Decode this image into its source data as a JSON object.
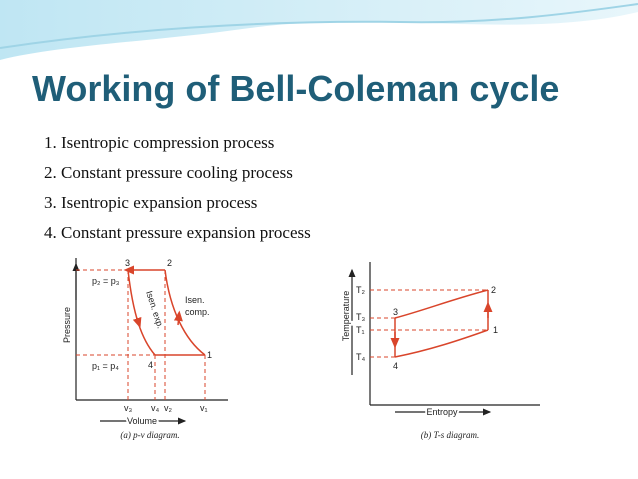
{
  "title": "Working of Bell-Coleman cycle",
  "steps": [
    "1. Isentropic compression process",
    "2. Constant pressure cooling process",
    "3. Isentropic expansion process",
    "4. Constant pressure expansion process"
  ],
  "pv_diagram": {
    "y_axis": "Pressure",
    "x_axis": "Volume",
    "caption": "(a) p-v diagram.",
    "points": [
      "1",
      "2",
      "3",
      "4"
    ],
    "pressure_labels": [
      "p₂ = p₃",
      "p₁ = p₄"
    ],
    "volume_labels": [
      "v₃",
      "v₄",
      "v₂",
      "v₁"
    ],
    "compression_label": [
      "Isen.",
      "comp."
    ],
    "expansion_label": "Isen. exp."
  },
  "ts_diagram": {
    "y_axis": "Temperature",
    "x_axis": "Entropy",
    "caption": "(b) T-s diagram.",
    "points": [
      "1",
      "2",
      "3",
      "4"
    ],
    "temperature_labels": [
      "T₂",
      "T₃",
      "T₁",
      "T₄"
    ]
  }
}
